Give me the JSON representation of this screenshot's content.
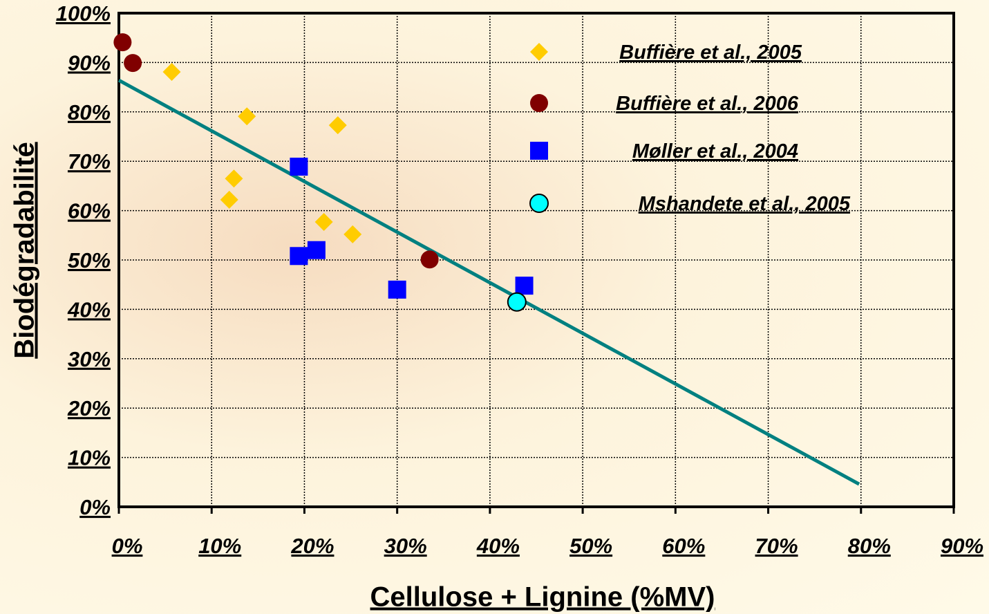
{
  "chart_data": {
    "type": "scatter",
    "xlabel": "Cellulose + Lignine  (%MV)",
    "ylabel": "Biodégradabilité",
    "xlim": [
      0,
      90
    ],
    "ylim": [
      0,
      100
    ],
    "xticks": [
      {
        "value": 0,
        "label": "0%"
      },
      {
        "value": 10,
        "label": "10%"
      },
      {
        "value": 20,
        "label": "20%"
      },
      {
        "value": 30,
        "label": "30%"
      },
      {
        "value": 40,
        "label": "40%"
      },
      {
        "value": 50,
        "label": "50%"
      },
      {
        "value": 60,
        "label": "60%"
      },
      {
        "value": 70,
        "label": "70%"
      },
      {
        "value": 80,
        "label": "80%"
      },
      {
        "value": 90,
        "label": "90%"
      }
    ],
    "yticks": [
      {
        "value": 0,
        "label": "0%"
      },
      {
        "value": 10,
        "label": "10%"
      },
      {
        "value": 20,
        "label": "20%"
      },
      {
        "value": 30,
        "label": "30%"
      },
      {
        "value": 40,
        "label": "40%"
      },
      {
        "value": 50,
        "label": "50%"
      },
      {
        "value": 60,
        "label": "60%"
      },
      {
        "value": 70,
        "label": "70%"
      },
      {
        "value": 80,
        "label": "80%"
      },
      {
        "value": 90,
        "label": "90%"
      },
      {
        "value": 100,
        "label": "100%"
      }
    ],
    "grid": true,
    "legend": "upper right",
    "series": [
      {
        "name": "Buffière et al., 2005",
        "marker": "diamond",
        "color": "#ffcc00",
        "x": [
          5.7,
          13.8,
          23.6,
          12.4,
          11.9,
          22.1,
          25.2
        ],
        "values": [
          88.1,
          79.1,
          77.3,
          66.5,
          62.2,
          57.7,
          55.2
        ]
      },
      {
        "name": "Buffière et al., 2006",
        "marker": "circle",
        "color": "#800000",
        "x": [
          0.4,
          1.5,
          33.5
        ],
        "values": [
          94.1,
          89.9,
          50.1
        ]
      },
      {
        "name": "Møller     et al., 2004",
        "marker": "square",
        "color": "#0000ff",
        "x": [
          19.4,
          19.4,
          21.3,
          30.0,
          43.7
        ],
        "values": [
          68.9,
          50.8,
          52.0,
          44.0,
          44.8
        ]
      },
      {
        "name": "Mshandete      et al., 2005",
        "marker": "circle",
        "color": "#00ffff",
        "x": [
          42.9
        ],
        "values": [
          41.5
        ]
      }
    ],
    "trendline": {
      "color": "#008080",
      "x": [
        0,
        79.8
      ],
      "values": [
        86.4,
        4.6
      ]
    }
  }
}
